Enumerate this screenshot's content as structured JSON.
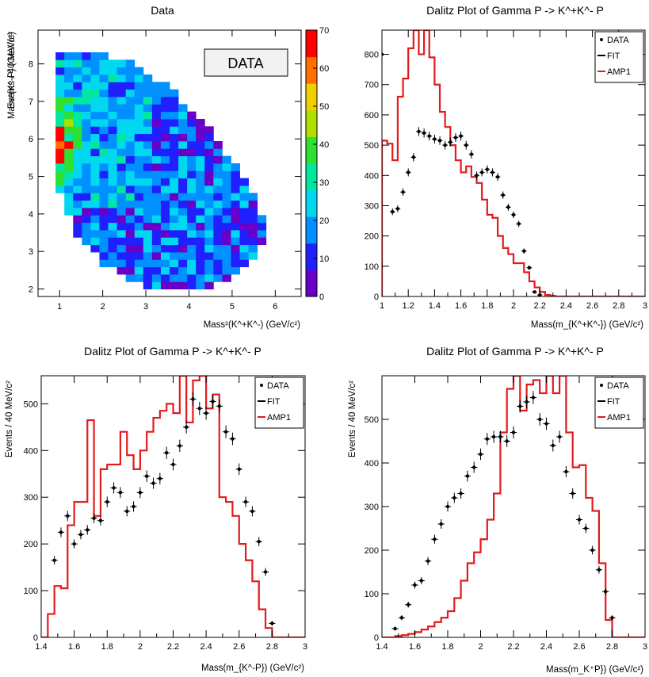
{
  "chart_data": [
    {
      "id": "heat",
      "type": "heatmap",
      "title": "Data",
      "xlabel": "Mass²(K^+K^-) (GeV/c²)",
      "ylabel": "Mass²(K^-P) (GeV/c²)",
      "xlim": [
        0.5,
        6.6
      ],
      "ylim": [
        1.8,
        8.9
      ],
      "xticks": [
        1,
        2,
        3,
        4,
        5,
        6
      ],
      "yticks": [
        2,
        3,
        4,
        5,
        6,
        7,
        8
      ],
      "zlim": [
        0,
        70
      ],
      "zticks": [
        0,
        10,
        20,
        30,
        40,
        50,
        60,
        70
      ],
      "label_box": "DATA",
      "palette": [
        "#6a00c8",
        "#2020ff",
        "#0090ff",
        "#00d8f0",
        "#00e8a0",
        "#30e030",
        "#b0e000",
        "#f0d000",
        "#ff7000",
        "#ff0000"
      ],
      "bins": {
        "nx": 30,
        "ny": 36,
        "x0": 0.5,
        "x1": 6.6,
        "y0": 1.8,
        "y1": 8.9,
        "contour": [
          [
            0.95,
            8.3
          ],
          [
            1.5,
            8.3
          ],
          [
            2.2,
            8.2
          ],
          [
            2.9,
            7.9
          ],
          [
            3.6,
            7.3
          ],
          [
            4.3,
            6.5
          ],
          [
            4.9,
            5.6
          ],
          [
            5.4,
            4.7
          ],
          [
            5.7,
            3.9
          ],
          [
            5.7,
            3.2
          ],
          [
            5.4,
            2.6
          ],
          [
            4.9,
            2.2
          ],
          [
            4.3,
            2.0
          ],
          [
            3.5,
            1.95
          ],
          [
            2.7,
            2.2
          ],
          [
            2.0,
            2.7
          ],
          [
            1.5,
            3.3
          ],
          [
            1.2,
            3.9
          ],
          [
            1.0,
            4.6
          ],
          [
            0.95,
            5.3
          ],
          [
            0.9,
            6.2
          ],
          [
            0.9,
            7.2
          ]
        ],
        "peak_x": 1.0,
        "peak_y": 5.9
      }
    },
    {
      "id": "p1",
      "type": "line",
      "title": "Dalitz Plot of Gamma P -> K^+K^- P",
      "xlabel": "Mass(m_{K^+K^-}) (GeV/c²)",
      "ylabel": "Events / 40 MeV/c²",
      "xlim": [
        1.0,
        3.0
      ],
      "ylim": [
        0,
        880
      ],
      "xticks": [
        1,
        1.2,
        1.4,
        1.6,
        1.8,
        2,
        2.2,
        2.4,
        2.6,
        2.8,
        3
      ],
      "yticks": [
        0,
        100,
        200,
        300,
        400,
        500,
        600,
        700,
        800
      ],
      "legend": [
        "DATA",
        "FIT",
        "AMP1"
      ],
      "data_x": [
        1.0,
        1.08,
        1.12,
        1.16,
        1.2,
        1.24,
        1.28,
        1.32,
        1.36,
        1.4,
        1.44,
        1.48,
        1.52,
        1.56,
        1.6,
        1.64,
        1.68,
        1.72,
        1.76,
        1.8,
        1.84,
        1.88,
        1.92,
        1.96,
        2.0,
        2.04,
        2.08,
        2.12,
        2.16,
        2.2,
        2.24,
        2.28,
        2.32,
        2.36,
        2.4
      ],
      "data_y": [
        800,
        280,
        290,
        345,
        410,
        460,
        545,
        540,
        530,
        520,
        515,
        500,
        510,
        525,
        530,
        500,
        470,
        400,
        410,
        420,
        410,
        395,
        335,
        295,
        270,
        240,
        150,
        95,
        15,
        5,
        0,
        0,
        0,
        0,
        0
      ],
      "amp1_edges": [
        1.0,
        1.04,
        1.08,
        1.12,
        1.16,
        1.2,
        1.24,
        1.28,
        1.32,
        1.36,
        1.4,
        1.44,
        1.48,
        1.52,
        1.56,
        1.6,
        1.64,
        1.68,
        1.72,
        1.76,
        1.8,
        1.84,
        1.88,
        1.92,
        1.96,
        2.0,
        2.04,
        2.08,
        2.12,
        2.16,
        2.2,
        2.24,
        2.28,
        2.32,
        3.0
      ],
      "amp1_values": [
        515,
        505,
        450,
        660,
        720,
        820,
        880,
        800,
        880,
        790,
        700,
        610,
        560,
        500,
        450,
        410,
        430,
        395,
        375,
        320,
        270,
        260,
        200,
        160,
        140,
        110,
        110,
        80,
        50,
        30,
        15,
        5,
        2,
        0
      ]
    },
    {
      "id": "p2",
      "type": "line",
      "title": "Dalitz Plot of Gamma P -> K^+K^- P",
      "xlabel": "Mass(m_{K^-P}) (GeV/c²)",
      "ylabel": "Events / 40 MeV/c²",
      "xlim": [
        1.4,
        3.0
      ],
      "ylim": [
        0,
        560
      ],
      "xticks": [
        1.4,
        1.6,
        1.8,
        2,
        2.2,
        2.4,
        2.6,
        2.8,
        3
      ],
      "yticks": [
        0,
        100,
        200,
        300,
        400,
        500
      ],
      "legend": [
        "DATA",
        "FIT",
        "AMP1"
      ],
      "data_x": [
        1.48,
        1.52,
        1.56,
        1.6,
        1.64,
        1.68,
        1.72,
        1.76,
        1.8,
        1.84,
        1.88,
        1.92,
        1.96,
        2.0,
        2.04,
        2.08,
        2.12,
        2.16,
        2.2,
        2.24,
        2.28,
        2.32,
        2.36,
        2.4,
        2.44,
        2.48,
        2.52,
        2.56,
        2.6,
        2.64,
        2.68,
        2.72,
        2.76,
        2.8
      ],
      "data_y": [
        165,
        225,
        260,
        200,
        220,
        230,
        255,
        250,
        290,
        320,
        310,
        270,
        280,
        310,
        345,
        330,
        340,
        395,
        370,
        410,
        450,
        510,
        490,
        480,
        505,
        495,
        440,
        425,
        360,
        290,
        270,
        205,
        140,
        30
      ],
      "amp1_edges": [
        1.4,
        1.44,
        1.48,
        1.52,
        1.56,
        1.6,
        1.64,
        1.68,
        1.72,
        1.76,
        1.8,
        1.84,
        1.88,
        1.92,
        1.96,
        2.0,
        2.04,
        2.08,
        2.12,
        2.16,
        2.2,
        2.24,
        2.28,
        2.32,
        2.36,
        2.4,
        2.44,
        2.48,
        2.52,
        2.56,
        2.6,
        2.64,
        2.68,
        2.72,
        2.76,
        2.8,
        2.84,
        3.0
      ],
      "amp1_values": [
        0,
        50,
        110,
        105,
        240,
        290,
        290,
        465,
        260,
        360,
        370,
        370,
        440,
        390,
        360,
        400,
        440,
        470,
        485,
        500,
        480,
        560,
        460,
        550,
        560,
        490,
        520,
        300,
        290,
        260,
        200,
        165,
        120,
        60,
        20,
        0,
        0
      ]
    },
    {
      "id": "p3",
      "type": "line",
      "title": "Dalitz Plot of Gamma P -> K^+K^- P",
      "xlabel": "Mass(m_K⁺P}) (GeV/c²)",
      "ylabel": "Events / 40 MeV/c²",
      "xlim": [
        1.4,
        3.0
      ],
      "ylim": [
        0,
        600
      ],
      "xticks": [
        1.4,
        1.6,
        1.8,
        2,
        2.2,
        2.4,
        2.6,
        2.8,
        3
      ],
      "yticks": [
        0,
        100,
        200,
        300,
        400,
        500
      ],
      "legend": [
        "DATA",
        "FIT",
        "AMP1"
      ],
      "data_x": [
        1.48,
        1.52,
        1.56,
        1.6,
        1.64,
        1.68,
        1.72,
        1.76,
        1.8,
        1.84,
        1.88,
        1.92,
        1.96,
        2.0,
        2.04,
        2.08,
        2.12,
        2.16,
        2.2,
        2.24,
        2.28,
        2.32,
        2.36,
        2.4,
        2.44,
        2.48,
        2.52,
        2.56,
        2.6,
        2.64,
        2.68,
        2.72,
        2.76,
        2.8
      ],
      "data_y": [
        20,
        45,
        75,
        120,
        130,
        175,
        225,
        260,
        300,
        320,
        330,
        370,
        390,
        420,
        455,
        460,
        460,
        450,
        470,
        530,
        540,
        550,
        500,
        490,
        440,
        460,
        380,
        330,
        270,
        250,
        200,
        155,
        105,
        45
      ],
      "amp1_edges": [
        1.4,
        1.44,
        1.48,
        1.52,
        1.56,
        1.6,
        1.64,
        1.68,
        1.72,
        1.76,
        1.8,
        1.84,
        1.88,
        1.92,
        1.96,
        2.0,
        2.04,
        2.08,
        2.12,
        2.16,
        2.2,
        2.24,
        2.28,
        2.32,
        2.36,
        2.4,
        2.44,
        2.48,
        2.52,
        2.56,
        2.6,
        2.64,
        2.68,
        2.72,
        2.76,
        2.8,
        2.84,
        3.0
      ],
      "amp1_values": [
        0,
        0,
        3,
        5,
        8,
        12,
        18,
        25,
        35,
        45,
        60,
        90,
        130,
        170,
        195,
        225,
        270,
        330,
        470,
        570,
        600,
        520,
        580,
        590,
        560,
        600,
        560,
        600,
        470,
        390,
        395,
        320,
        290,
        170,
        40,
        0,
        0
      ]
    }
  ]
}
